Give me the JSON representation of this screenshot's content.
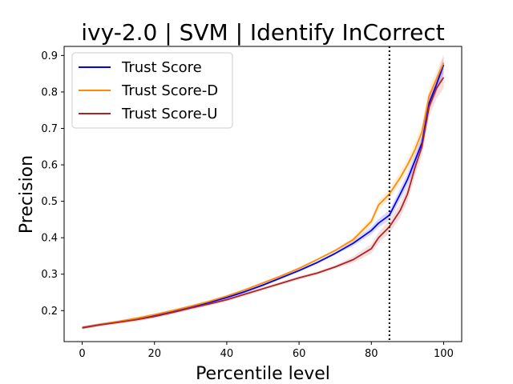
{
  "chart_data": {
    "type": "line",
    "title": "ivy-2.0 | SVM | Identify InCorrect",
    "xlabel": "Percentile level",
    "ylabel": "Precision",
    "xlim": [
      -5,
      105
    ],
    "ylim": [
      0.115,
      0.925
    ],
    "xticks": [
      0,
      20,
      40,
      60,
      80,
      100
    ],
    "yticks": [
      0.2,
      0.3,
      0.4,
      0.5,
      0.6,
      0.7,
      0.8,
      0.9
    ],
    "xtick_labels": [
      "0",
      "20",
      "40",
      "60",
      "80",
      "100"
    ],
    "ytick_labels": [
      "0.2",
      "0.3",
      "0.4",
      "0.5",
      "0.6",
      "0.7",
      "0.8",
      "0.9"
    ],
    "grid": false,
    "legend_position": "top-left",
    "vline": {
      "x": 85,
      "style": "dotted",
      "color": "#000000"
    },
    "series": [
      {
        "name": "Trust Score",
        "color": "#0000ff",
        "x": [
          0,
          5,
          10,
          15,
          20,
          25,
          30,
          35,
          40,
          45,
          50,
          55,
          60,
          65,
          70,
          75,
          80,
          82,
          85,
          88,
          90,
          92,
          94,
          96,
          98,
          100
        ],
        "y": [
          0.153,
          0.162,
          0.169,
          0.178,
          0.187,
          0.198,
          0.21,
          0.222,
          0.236,
          0.252,
          0.27,
          0.29,
          0.31,
          0.332,
          0.357,
          0.385,
          0.42,
          0.44,
          0.462,
          0.52,
          0.56,
          0.61,
          0.66,
          0.77,
          0.82,
          0.875
        ],
        "band": 0.012
      },
      {
        "name": "Trust Score-D",
        "color": "#ff8c00",
        "x": [
          0,
          5,
          10,
          15,
          20,
          25,
          30,
          35,
          40,
          45,
          50,
          55,
          60,
          65,
          70,
          75,
          80,
          82,
          85,
          88,
          90,
          92,
          94,
          96,
          98,
          100
        ],
        "y": [
          0.153,
          0.162,
          0.17,
          0.179,
          0.189,
          0.2,
          0.212,
          0.225,
          0.24,
          0.257,
          0.276,
          0.295,
          0.316,
          0.34,
          0.365,
          0.395,
          0.445,
          0.49,
          0.52,
          0.565,
          0.6,
          0.64,
          0.69,
          0.79,
          0.835,
          0.88
        ],
        "band": 0.012
      },
      {
        "name": "Trust Score-U",
        "color": "#b22222",
        "x": [
          0,
          5,
          10,
          15,
          20,
          25,
          30,
          35,
          40,
          45,
          50,
          55,
          60,
          65,
          70,
          75,
          80,
          82,
          85,
          88,
          90,
          92,
          94,
          96,
          98,
          100
        ],
        "y": [
          0.153,
          0.161,
          0.168,
          0.175,
          0.184,
          0.195,
          0.207,
          0.218,
          0.23,
          0.245,
          0.26,
          0.275,
          0.29,
          0.303,
          0.32,
          0.34,
          0.37,
          0.4,
          0.43,
          0.475,
          0.52,
          0.59,
          0.65,
          0.76,
          0.81,
          0.84
        ],
        "band": 0.015
      }
    ]
  }
}
